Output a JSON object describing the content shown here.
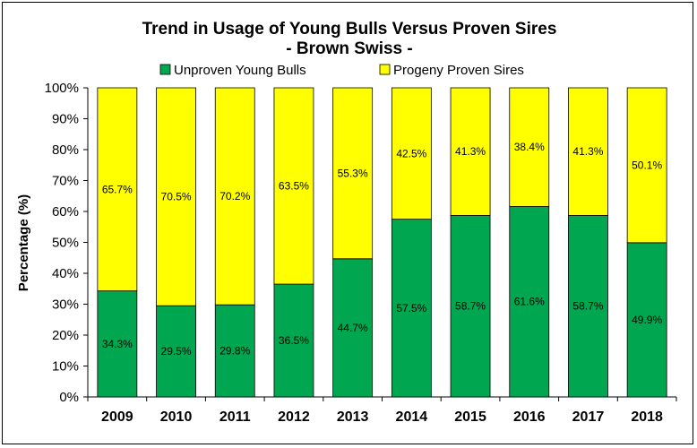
{
  "chart_data": {
    "type": "bar",
    "stacked": true,
    "percent": true,
    "title": "Trend in Usage of Young Bulls Versus Proven Sires",
    "subtitle": "- Brown Swiss -",
    "ylabel": "Percentage (%)",
    "xlabel": "",
    "ylim": [
      0,
      100
    ],
    "yticks": [
      "0%",
      "10%",
      "20%",
      "30%",
      "40%",
      "50%",
      "60%",
      "70%",
      "80%",
      "90%",
      "100%"
    ],
    "grid": false,
    "legend_position": "top",
    "categories": [
      "2009",
      "2010",
      "2011",
      "2012",
      "2013",
      "2014",
      "2015",
      "2016",
      "2017",
      "2018"
    ],
    "series": [
      {
        "name": "Unproven Young Bulls",
        "color": "#00A650",
        "values": [
          34.3,
          29.5,
          29.8,
          36.5,
          44.7,
          57.5,
          58.7,
          61.6,
          58.7,
          49.9
        ],
        "labels": [
          "34.3%",
          "29.5%",
          "29.8%",
          "36.5%",
          "44.7%",
          "57.5%",
          "58.7%",
          "61.6%",
          "58.7%",
          "49.9%"
        ]
      },
      {
        "name": "Progeny Proven Sires",
        "color": "#FFFF00",
        "values": [
          65.7,
          70.5,
          70.2,
          63.5,
          55.3,
          42.5,
          41.3,
          38.4,
          41.3,
          50.1
        ],
        "labels": [
          "65.7%",
          "70.5%",
          "70.2%",
          "63.5%",
          "55.3%",
          "42.5%",
          "41.3%",
          "38.4%",
          "41.3%",
          "50.1%"
        ]
      }
    ]
  }
}
